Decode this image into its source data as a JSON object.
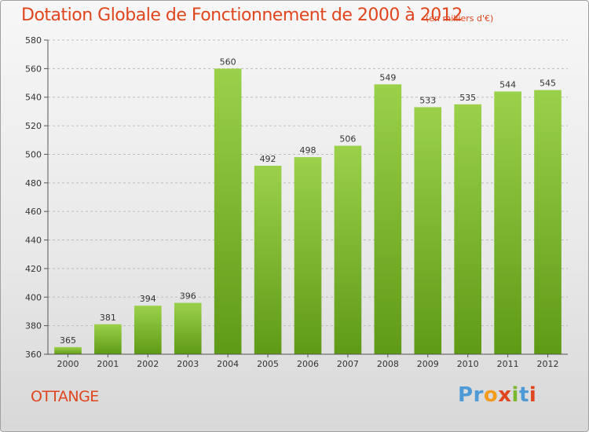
{
  "chart_data": {
    "type": "bar",
    "title": "Dotation Globale de Fonctionnement de 2000 à 2012",
    "unit_note": "(en milliers d'€)",
    "categories": [
      "2000",
      "2001",
      "2002",
      "2003",
      "2004",
      "2005",
      "2006",
      "2007",
      "2008",
      "2009",
      "2010",
      "2011",
      "2012"
    ],
    "values": [
      365,
      381,
      394,
      396,
      560,
      492,
      498,
      506,
      549,
      533,
      535,
      544,
      545
    ],
    "ylim": [
      360,
      580
    ],
    "yticks": [
      360,
      380,
      400,
      420,
      440,
      460,
      480,
      500,
      520,
      540,
      560,
      580
    ],
    "grid": true,
    "bar_color": "#7cb82f"
  },
  "commune": "OTTANGE",
  "logo": {
    "letters": [
      "P",
      "r",
      "o",
      "x",
      "i",
      "t",
      "i"
    ]
  }
}
